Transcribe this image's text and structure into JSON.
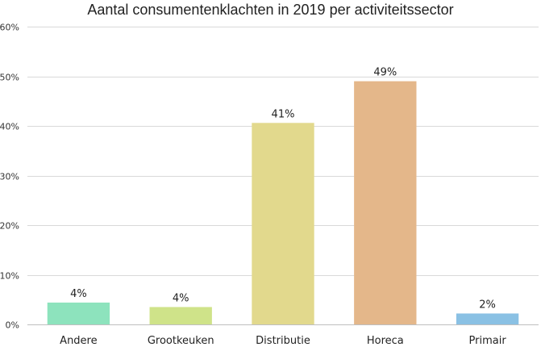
{
  "chart_data": {
    "type": "bar",
    "title": "Aantal consumentenklachten in 2019 per activiteitssector",
    "xlabel": "",
    "ylabel": "",
    "categories": [
      "Andere",
      "Grootkeuken",
      "Distributie",
      "Horeca",
      "Primair"
    ],
    "values": [
      4.4,
      3.5,
      40.6,
      49.0,
      2.2
    ],
    "data_labels": [
      "4%",
      "4%",
      "41%",
      "49%",
      "2%"
    ],
    "colors": [
      "#8de3bd",
      "#cfe389",
      "#e2d98d",
      "#e4b78a",
      "#8ac1e4"
    ],
    "ylim": [
      0,
      60
    ],
    "yticks": [
      0,
      10,
      20,
      30,
      40,
      50,
      60
    ],
    "ytick_labels": [
      "0%",
      "10%",
      "20%",
      "30%",
      "40%",
      "50%",
      "60%"
    ],
    "grid": true,
    "legend": "none"
  }
}
